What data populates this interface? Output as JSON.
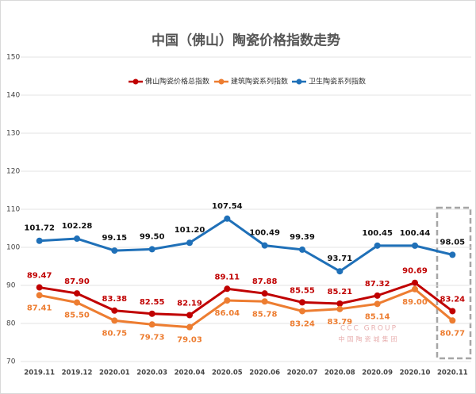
{
  "chart_data": {
    "type": "line",
    "title": "中国（佛山）陶瓷价格指数走势",
    "categories": [
      "2019.11",
      "2019.12",
      "2020.01",
      "2020.03",
      "2020.04",
      "2020.05",
      "2020.06",
      "2020.07",
      "2020.08",
      "2020.09",
      "2020.10",
      "2020.11"
    ],
    "series": [
      {
        "name": "佛山陶瓷价格总指数",
        "color": "#c00000",
        "values": [
          89.47,
          87.9,
          83.38,
          82.55,
          82.19,
          89.11,
          87.88,
          85.55,
          85.21,
          87.32,
          90.69,
          83.24
        ],
        "value_labels": [
          "89.47",
          "87.90",
          "83.38",
          "82.55",
          "82.19",
          "89.11",
          "87.88",
          "85.55",
          "85.21",
          "87.32",
          "90.69",
          "83.24"
        ]
      },
      {
        "name": "建筑陶瓷系列指数",
        "color": "#ed7d31",
        "values": [
          87.41,
          85.5,
          80.75,
          79.73,
          79.03,
          86.04,
          85.78,
          83.24,
          83.79,
          85.14,
          89.0,
          80.77
        ],
        "value_labels": [
          "87.41",
          "85.50",
          "80.75",
          "79.73",
          "79.03",
          "86.04",
          "85.78",
          "83.24",
          "83.79",
          "85.14",
          "89.00",
          "80.77"
        ]
      },
      {
        "name": "卫生陶瓷系列指数",
        "color": "#1f70b8",
        "values": [
          101.72,
          102.28,
          99.15,
          99.5,
          101.2,
          107.54,
          100.49,
          99.39,
          93.71,
          100.45,
          100.44,
          98.05
        ],
        "value_labels": [
          "101.72",
          "102.28",
          "99.15",
          "99.50",
          "101.20",
          "107.54",
          "100.49",
          "99.39",
          "93.71",
          "100.45",
          "100.44",
          "98.05"
        ]
      }
    ],
    "ylim": [
      70,
      150
    ],
    "yticks": [
      70,
      80,
      90,
      100,
      110,
      120,
      130,
      140,
      150
    ],
    "grid": true,
    "legend": "top",
    "watermark": [
      "CCC GROUP",
      "中国陶瓷城集团"
    ]
  }
}
